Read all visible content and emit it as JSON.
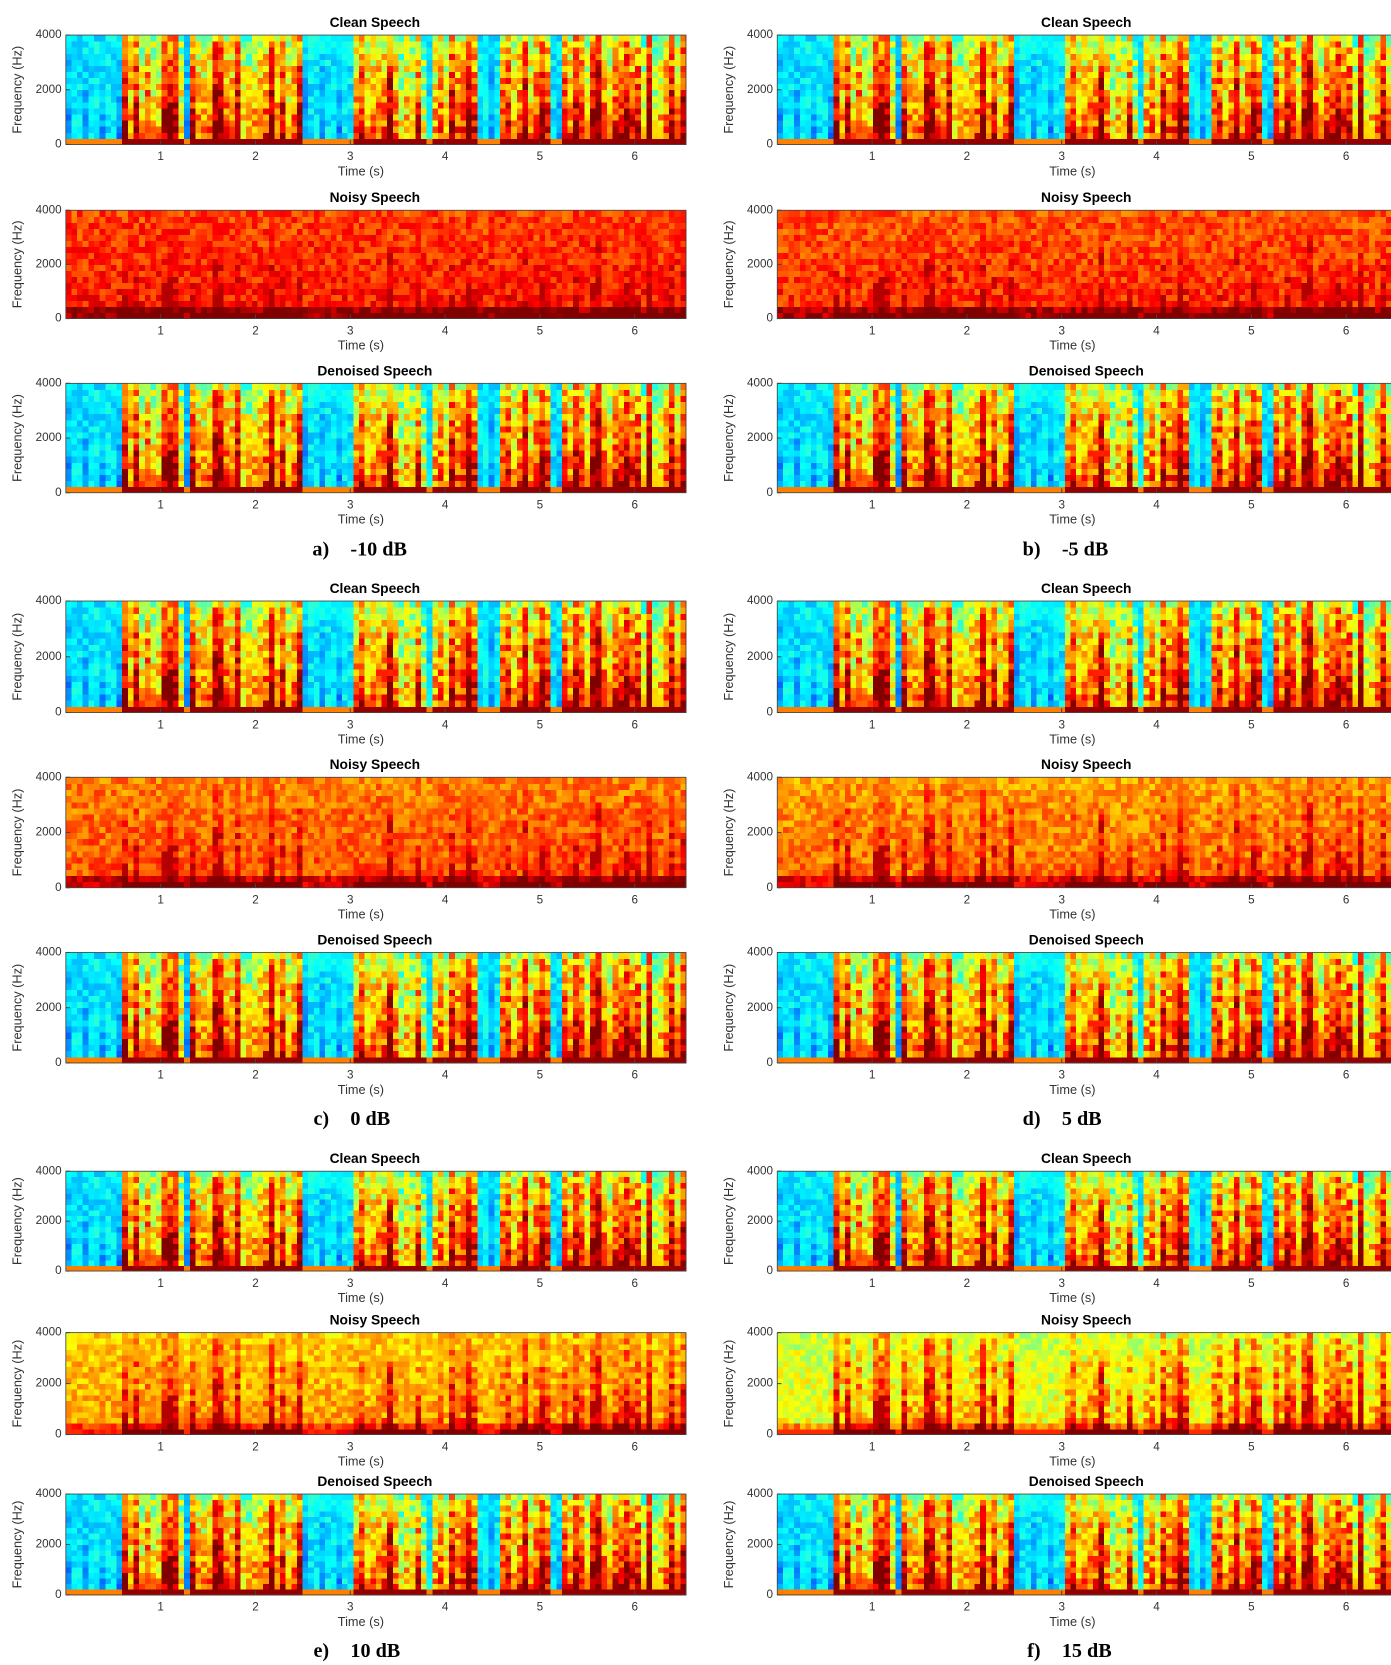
{
  "chart_data": [
    {
      "type": "spectrogram",
      "title": "Clean Speech",
      "xlabel": "Time (s)",
      "ylabel": "Frequency (Hz)",
      "xlim": [
        0,
        6.54
      ],
      "ylim": [
        0,
        4000
      ],
      "xticks": [
        1,
        2,
        3,
        4,
        5,
        6
      ],
      "yticks": [
        0,
        2000,
        4000
      ],
      "colormap": "jet"
    },
    {
      "type": "spectrogram",
      "title": "Noisy Speech",
      "xlabel": "Time (s)",
      "ylabel": "Frequency (Hz)",
      "xlim": [
        0,
        6.54
      ],
      "ylim": [
        0,
        4000
      ],
      "xticks": [
        1,
        2,
        3,
        4,
        5,
        6
      ],
      "yticks": [
        0,
        2000,
        4000
      ],
      "colormap": "jet"
    },
    {
      "type": "spectrogram",
      "title": "Denoised Speech",
      "xlabel": "Time (s)",
      "ylabel": "Frequency (Hz)",
      "xlim": [
        0,
        6.54
      ],
      "ylim": [
        0,
        4000
      ],
      "xticks": [
        1,
        2,
        3,
        4,
        5,
        6
      ],
      "yticks": [
        0,
        2000,
        4000
      ],
      "colormap": "jet"
    },
    {
      "type": "spectrogram",
      "title": "Clean Speech",
      "xlabel": "Time (s)",
      "ylabel": "Frequency (Hz)",
      "xlim": [
        0,
        6.54
      ],
      "ylim": [
        0,
        4000
      ],
      "xticks": [
        1,
        2,
        3,
        4,
        5,
        6
      ],
      "yticks": [
        0,
        2000,
        4000
      ],
      "colormap": "jet"
    },
    {
      "type": "spectrogram",
      "title": "Noisy Speech",
      "xlabel": "Time (s)",
      "ylabel": "Frequency (Hz)",
      "xlim": [
        0,
        6.54
      ],
      "ylim": [
        0,
        4000
      ],
      "xticks": [
        1,
        2,
        3,
        4,
        5,
        6
      ],
      "yticks": [
        0,
        2000,
        4000
      ],
      "colormap": "jet"
    },
    {
      "type": "spectrogram",
      "title": "Denoised Speech",
      "xlabel": "Time (s)",
      "ylabel": "Frequency (Hz)",
      "xlim": [
        0,
        6.54
      ],
      "ylim": [
        0,
        4000
      ],
      "xticks": [
        1,
        2,
        3,
        4,
        5,
        6
      ],
      "yticks": [
        0,
        2000,
        4000
      ],
      "colormap": "jet"
    },
    {
      "type": "spectrogram",
      "title": "Clean Speech",
      "xlabel": "Time (s)",
      "ylabel": "Frequency (Hz)",
      "xlim": [
        0,
        6.54
      ],
      "ylim": [
        0,
        4000
      ],
      "xticks": [
        1,
        2,
        3,
        4,
        5,
        6
      ],
      "yticks": [
        0,
        2000,
        4000
      ],
      "colormap": "jet"
    },
    {
      "type": "spectrogram",
      "title": "Noisy Speech",
      "xlabel": "Time (s)",
      "ylabel": "Frequency (Hz)",
      "xlim": [
        0,
        6.54
      ],
      "ylim": [
        0,
        4000
      ],
      "xticks": [
        1,
        2,
        3,
        4,
        5,
        6
      ],
      "yticks": [
        0,
        2000,
        4000
      ],
      "colormap": "jet"
    },
    {
      "type": "spectrogram",
      "title": "Denoised Speech",
      "xlabel": "Time (s)",
      "ylabel": "Frequency (Hz)",
      "xlim": [
        0,
        6.54
      ],
      "ylim": [
        0,
        4000
      ],
      "xticks": [
        1,
        2,
        3,
        4,
        5,
        6
      ],
      "yticks": [
        0,
        2000,
        4000
      ],
      "colormap": "jet"
    },
    {
      "type": "spectrogram",
      "title": "Clean Speech",
      "xlabel": "Time (s)",
      "ylabel": "Frequency (Hz)",
      "xlim": [
        0,
        6.54
      ],
      "ylim": [
        0,
        4000
      ],
      "xticks": [
        1,
        2,
        3,
        4,
        5,
        6
      ],
      "yticks": [
        0,
        2000,
        4000
      ],
      "colormap": "jet"
    },
    {
      "type": "spectrogram",
      "title": "Noisy Speech",
      "xlabel": "Time (s)",
      "ylabel": "Frequency (Hz)",
      "xlim": [
        0,
        6.54
      ],
      "ylim": [
        0,
        4000
      ],
      "xticks": [
        1,
        2,
        3,
        4,
        5,
        6
      ],
      "yticks": [
        0,
        2000,
        4000
      ],
      "colormap": "jet"
    },
    {
      "type": "spectrogram",
      "title": "Denoised Speech",
      "xlabel": "Time (s)",
      "ylabel": "Frequency (Hz)",
      "xlim": [
        0,
        6.54
      ],
      "ylim": [
        0,
        4000
      ],
      "xticks": [
        1,
        2,
        3,
        4,
        5,
        6
      ],
      "yticks": [
        0,
        2000,
        4000
      ],
      "colormap": "jet"
    },
    {
      "type": "spectrogram",
      "title": "Clean Speech",
      "xlabel": "Time (s)",
      "ylabel": "Frequency (Hz)",
      "xlim": [
        0,
        6.54
      ],
      "ylim": [
        0,
        4000
      ],
      "xticks": [
        1,
        2,
        3,
        4,
        5,
        6
      ],
      "yticks": [
        0,
        2000,
        4000
      ],
      "colormap": "jet"
    },
    {
      "type": "spectrogram",
      "title": "Noisy Speech",
      "xlabel": "Time (s)",
      "ylabel": "Frequency (Hz)",
      "xlim": [
        0,
        6.54
      ],
      "ylim": [
        0,
        4000
      ],
      "xticks": [
        1,
        2,
        3,
        4,
        5,
        6
      ],
      "yticks": [
        0,
        2000,
        4000
      ],
      "colormap": "jet"
    },
    {
      "type": "spectrogram",
      "title": "Denoised Speech",
      "xlabel": "Time (s)",
      "ylabel": "Frequency (Hz)",
      "xlim": [
        0,
        6.54
      ],
      "ylim": [
        0,
        4000
      ],
      "xticks": [
        1,
        2,
        3,
        4,
        5,
        6
      ],
      "yticks": [
        0,
        2000,
        4000
      ],
      "colormap": "jet"
    },
    {
      "type": "spectrogram",
      "title": "Clean Speech",
      "xlabel": "Time (s)",
      "ylabel": "Frequency (Hz)",
      "xlim": [
        0,
        6.54
      ],
      "ylim": [
        0,
        4000
      ],
      "xticks": [
        1,
        2,
        3,
        4,
        5,
        6
      ],
      "yticks": [
        0,
        2000,
        4000
      ],
      "colormap": "jet"
    },
    {
      "type": "spectrogram",
      "title": "Noisy Speech",
      "xlabel": "Time (s)",
      "ylabel": "Frequency (Hz)",
      "xlim": [
        0,
        6.54
      ],
      "ylim": [
        0,
        4000
      ],
      "xticks": [
        1,
        2,
        3,
        4,
        5,
        6
      ],
      "yticks": [
        0,
        2000,
        4000
      ],
      "colormap": "jet"
    },
    {
      "type": "spectrogram",
      "title": "Denoised Speech",
      "xlabel": "Time (s)",
      "ylabel": "Frequency (Hz)",
      "xlim": [
        0,
        6.54
      ],
      "ylim": [
        0,
        4000
      ],
      "xticks": [
        1,
        2,
        3,
        4,
        5,
        6
      ],
      "yticks": [
        0,
        2000,
        4000
      ],
      "colormap": "jet"
    }
  ],
  "captions": [
    {
      "label": "a)",
      "text": "-10 dB"
    },
    {
      "label": "b)",
      "text": "-5 dB"
    },
    {
      "label": "c)",
      "text": "0 dB"
    },
    {
      "label": "d)",
      "text": "5 dB"
    },
    {
      "label": "e)",
      "text": "10 dB"
    },
    {
      "label": "f)",
      "text": "15 dB"
    }
  ]
}
